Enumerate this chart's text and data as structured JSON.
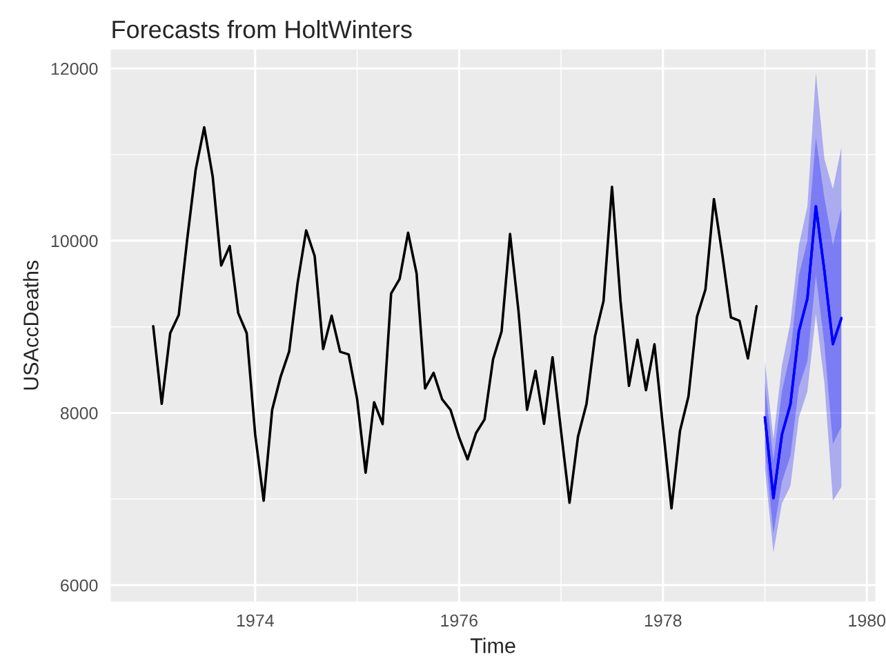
{
  "chart_data": {
    "type": "line",
    "title": "Forecasts from HoltWinters",
    "xlabel": "Time",
    "ylabel": "USAccDeaths",
    "xlim": [
      "1972-08",
      "1980-02"
    ],
    "xticks": [
      "1974",
      "1976",
      "1978",
      "1980"
    ],
    "ylim": [
      5810,
      12220
    ],
    "yticks": [
      6000,
      8000,
      10000,
      12000
    ],
    "grid": true,
    "series": [
      {
        "color": "#000000",
        "x": [
          "1973-01",
          "1973-02",
          "1973-03",
          "1973-04",
          "1973-05",
          "1973-06",
          "1973-07",
          "1973-08",
          "1973-09",
          "1973-10",
          "1973-11",
          "1973-12",
          "1974-01",
          "1974-02",
          "1974-03",
          "1974-04",
          "1974-05",
          "1974-06",
          "1974-07",
          "1974-08",
          "1974-09",
          "1974-10",
          "1974-11",
          "1974-12",
          "1975-01",
          "1975-02",
          "1975-03",
          "1975-04",
          "1975-05",
          "1975-06",
          "1975-07",
          "1975-08",
          "1975-09",
          "1975-10",
          "1975-11",
          "1975-12",
          "1976-01",
          "1976-02",
          "1976-03",
          "1976-04",
          "1976-05",
          "1976-06",
          "1976-07",
          "1976-08",
          "1976-09",
          "1976-10",
          "1976-11",
          "1976-12",
          "1977-01",
          "1977-02",
          "1977-03",
          "1977-04",
          "1977-05",
          "1977-06",
          "1977-07",
          "1977-08",
          "1977-09",
          "1977-10",
          "1977-11",
          "1977-12",
          "1978-01",
          "1978-02",
          "1978-03",
          "1978-04",
          "1978-05",
          "1978-06",
          "1978-07",
          "1978-08",
          "1978-09",
          "1978-10",
          "1978-11",
          "1978-12"
        ],
        "values": [
          9007,
          8106,
          8928,
          9137,
          10017,
          10826,
          11317,
          10744,
          9713,
          9938,
          9161,
          8927,
          7750,
          6981,
          8038,
          8422,
          8714,
          9512,
          10120,
          9823,
          8743,
          9129,
          8710,
          8680,
          8162,
          7306,
          8124,
          7870,
          9387,
          9556,
          10093,
          9620,
          8285,
          8466,
          8160,
          8034,
          7717,
          7461,
          7767,
          7925,
          8623,
          8945,
          10078,
          9179,
          8037,
          8488,
          7874,
          8647,
          7792,
          6957,
          7726,
          8106,
          8890,
          9299,
          10625,
          9302,
          8314,
          8850,
          8265,
          8796,
          7836,
          6892,
          7791,
          8192,
          9115,
          9434,
          10484,
          9827,
          9110,
          9070,
          8633,
          9240
        ]
      },
      {
        "color": "#0000ff",
        "x": [
          "1979-01",
          "1979-02",
          "1979-03",
          "1979-04",
          "1979-05",
          "1979-06",
          "1979-07",
          "1979-08",
          "1979-09",
          "1979-10"
        ],
        "values": [
          7950,
          7010,
          7750,
          8100,
          8950,
          9330,
          10400,
          9650,
          8800,
          9100
        ],
        "lower": [
          7600,
          6600,
          7200,
          7500,
          8300,
          8600,
          9600,
          8800,
          7640,
          7840
        ],
        "upper": [
          8350,
          7450,
          8250,
          8700,
          9600,
          10000,
          11200,
          10500,
          9950,
          10380
        ]
      },
      {
        "color": "#0000ff",
        "x": [
          "1979-01",
          "1979-02",
          "1979-03",
          "1979-04",
          "1979-05",
          "1979-06",
          "1979-07",
          "1979-08",
          "1979-09",
          "1979-10"
        ],
        "values": [
          7950,
          7010,
          7750,
          8100,
          8950,
          9330,
          10400,
          9650,
          8800,
          9100
        ],
        "lower": [
          7350,
          6380,
          6950,
          7150,
          7950,
          8250,
          9150,
          8350,
          6980,
          7140
        ],
        "upper": [
          8600,
          7700,
          8550,
          9050,
          9950,
          10400,
          11950,
          10950,
          10600,
          11080
        ]
      }
    ]
  }
}
